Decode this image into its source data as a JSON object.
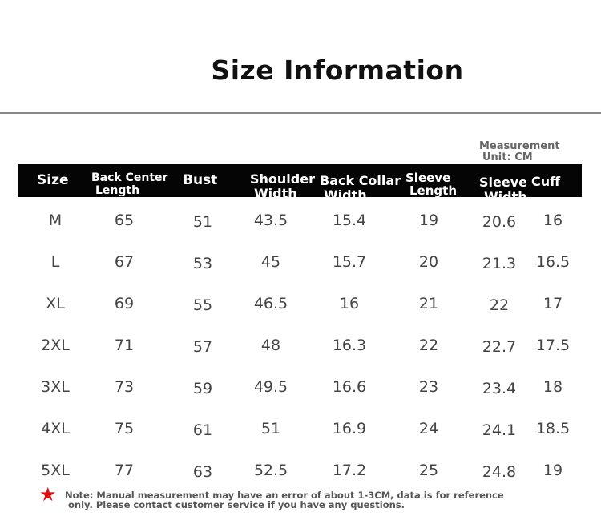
{
  "title": "Size Information",
  "unit": {
    "line1": "Measurement",
    "line2": "Unit: CM"
  },
  "headers": {
    "size": "Size",
    "back_center_length": {
      "line1": "Back Center",
      "line2": "Length"
    },
    "bust": "Bust",
    "shoulder_width": {
      "line1": "Shoulder",
      "line2": "Width"
    },
    "back_collar_width": {
      "line1": "Back Collar",
      "line2": "Width"
    },
    "sleeve_length": {
      "line1": "Sleeve",
      "line2": "Length"
    },
    "sleeve_width": {
      "line1": "Sleeve",
      "line2": "Width"
    },
    "cuff": "Cuff"
  },
  "rows": [
    {
      "size": "M",
      "back_center_length": "65",
      "bust": "51",
      "shoulder_width": "43.5",
      "back_collar_width": "15.4",
      "sleeve_length": "19",
      "sleeve_width": "20.6",
      "cuff": "16"
    },
    {
      "size": "L",
      "back_center_length": "67",
      "bust": "53",
      "shoulder_width": "45",
      "back_collar_width": "15.7",
      "sleeve_length": "20",
      "sleeve_width": "21.3",
      "cuff": "16.5"
    },
    {
      "size": "XL",
      "back_center_length": "69",
      "bust": "55",
      "shoulder_width": "46.5",
      "back_collar_width": "16",
      "sleeve_length": "21",
      "sleeve_width": "22",
      "cuff": "17"
    },
    {
      "size": "2XL",
      "back_center_length": "71",
      "bust": "57",
      "shoulder_width": "48",
      "back_collar_width": "16.3",
      "sleeve_length": "22",
      "sleeve_width": "22.7",
      "cuff": "17.5"
    },
    {
      "size": "3XL",
      "back_center_length": "73",
      "bust": "59",
      "shoulder_width": "49.5",
      "back_collar_width": "16.6",
      "sleeve_length": "23",
      "sleeve_width": "23.4",
      "cuff": "18"
    },
    {
      "size": "4XL",
      "back_center_length": "75",
      "bust": "61",
      "shoulder_width": "51",
      "back_collar_width": "16.9",
      "sleeve_length": "24",
      "sleeve_width": "24.1",
      "cuff": "18.5"
    },
    {
      "size": "5XL",
      "back_center_length": "77",
      "bust": "63",
      "shoulder_width": "52.5",
      "back_collar_width": "17.2",
      "sleeve_length": "25",
      "sleeve_width": "24.8",
      "cuff": "19"
    }
  ],
  "note": {
    "icon": "star-icon",
    "line1": "Note: Manual measurement may have an error of about 1-3CM, data is for reference",
    "line2": "only. Please contact customer service if you have any questions."
  },
  "colors": {
    "header_bg": "#050505",
    "header_text": "#ffffff",
    "star": "#e01010",
    "rule": "#8a8a8a"
  }
}
